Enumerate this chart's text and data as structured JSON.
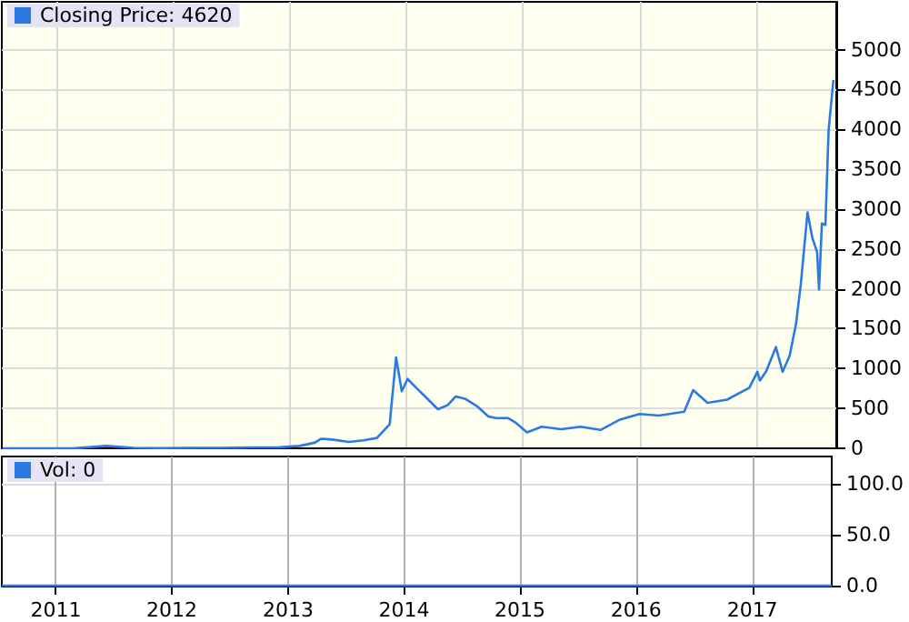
{
  "chart_data": [
    {
      "type": "line",
      "legend": "top left",
      "grid": true,
      "tick_labels": "y",
      "marker": "none",
      "line_style": "solid",
      "xlim": [
        "2010-07-15",
        "2017-09-08"
      ],
      "xticks": [
        "2011",
        "2012",
        "2013",
        "2014",
        "2015",
        "2016",
        "2017"
      ],
      "ylim": [
        0,
        5600
      ],
      "yticks": [
        0,
        500,
        1000,
        1500,
        2000,
        2500,
        3000,
        3500,
        4000,
        4500,
        5000
      ],
      "series": [
        {
          "name": "Closing Price: 4620",
          "color": "#2a7ae2",
          "x": [
            "2010-07-17",
            "2010-12-01",
            "2011-03-01",
            "2011-06-08",
            "2011-09-01",
            "2011-12-01",
            "2012-03-01",
            "2012-06-01",
            "2012-09-01",
            "2012-12-01",
            "2013-02-01",
            "2013-03-20",
            "2013-04-10",
            "2013-05-15",
            "2013-07-05",
            "2013-08-20",
            "2013-10-01",
            "2013-11-10",
            "2013-11-30",
            "2013-12-18",
            "2014-01-05",
            "2014-02-01",
            "2014-03-01",
            "2014-04-10",
            "2014-05-10",
            "2014-06-05",
            "2014-07-05",
            "2014-08-10",
            "2014-09-15",
            "2014-10-10",
            "2014-11-15",
            "2014-12-10",
            "2015-01-14",
            "2015-03-01",
            "2015-05-01",
            "2015-07-01",
            "2015-09-01",
            "2015-11-01",
            "2016-01-01",
            "2016-03-01",
            "2016-05-20",
            "2016-06-17",
            "2016-08-01",
            "2016-10-01",
            "2016-12-10",
            "2017-01-04",
            "2017-01-12",
            "2017-02-01",
            "2017-03-03",
            "2017-03-24",
            "2017-04-15",
            "2017-05-05",
            "2017-05-20",
            "2017-06-10",
            "2017-06-25",
            "2017-07-10",
            "2017-07-16",
            "2017-07-25",
            "2017-08-05",
            "2017-08-15",
            "2017-08-30"
          ],
          "values": [
            0,
            0,
            1,
            30,
            5,
            3,
            5,
            6,
            11,
            13,
            30,
            70,
            120,
            110,
            80,
            100,
            130,
            300,
            1140,
            715,
            870,
            760,
            650,
            490,
            540,
            650,
            620,
            530,
            400,
            380,
            380,
            320,
            200,
            270,
            240,
            270,
            230,
            360,
            430,
            410,
            460,
            730,
            570,
            610,
            760,
            960,
            850,
            970,
            1270,
            960,
            1160,
            1560,
            2060,
            2960,
            2640,
            2460,
            1990,
            2820,
            2800,
            3990,
            4620
          ]
        }
      ]
    },
    {
      "type": "line",
      "legend": "top left",
      "grid": true,
      "marker": "none",
      "xlim": [
        "2010-07-15",
        "2017-09-08"
      ],
      "xticks": [
        "2011",
        "2012",
        "2013",
        "2014",
        "2015",
        "2016",
        "2017"
      ],
      "ylim": [
        0,
        127
      ],
      "yticks": [
        {
          "value": 0,
          "label": "0.0"
        },
        {
          "value": 50,
          "label": "50.0"
        },
        {
          "value": 100,
          "label": "100.0"
        }
      ],
      "series": [
        {
          "name": "Vol: 0",
          "color": "#2a7ae2",
          "x": [
            "2010-07-15",
            "2017-09-08"
          ],
          "values": [
            0,
            0
          ]
        }
      ]
    }
  ]
}
